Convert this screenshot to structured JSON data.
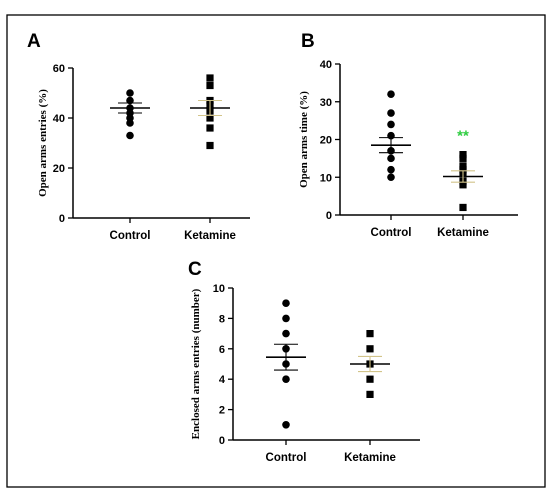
{
  "colors": {
    "frame": "#000000",
    "points": "#000000",
    "significance": "#2ecc40",
    "sem_alt": "#d2c48a"
  },
  "chart_data": [
    {
      "panel": "A",
      "type": "scatter",
      "ylabel": "Open arms entries (%)",
      "ylim": [
        0,
        60
      ],
      "yticks": [
        0,
        20,
        40,
        60
      ],
      "categories": [
        "Control",
        "Ketamine"
      ],
      "series": [
        {
          "category": "Control",
          "marker": "circle",
          "points": [
            50,
            47,
            44,
            42,
            40,
            38,
            33
          ],
          "mean": 44,
          "sem": 2
        },
        {
          "category": "Ketamine",
          "marker": "square",
          "points": [
            56,
            53,
            47,
            45,
            43,
            40,
            36,
            29
          ],
          "mean": 44,
          "sem": 3
        }
      ]
    },
    {
      "panel": "B",
      "type": "scatter",
      "ylabel": "Open arms time (%)",
      "ylim": [
        0,
        40
      ],
      "yticks": [
        0,
        10,
        20,
        30,
        40
      ],
      "categories": [
        "Control",
        "Ketamine"
      ],
      "series": [
        {
          "category": "Control",
          "marker": "circle",
          "points": [
            32,
            27,
            24,
            21,
            17,
            15,
            12,
            10
          ],
          "mean": 18.5,
          "sem": 2
        },
        {
          "category": "Ketamine",
          "marker": "square",
          "points": [
            16,
            15,
            13,
            12,
            11,
            9,
            8,
            2
          ],
          "mean": 10.2,
          "sem": 1.5,
          "significance": "**"
        }
      ]
    },
    {
      "panel": "C",
      "type": "scatter",
      "ylabel": "Enclosed arms entries (number)",
      "ylim": [
        0,
        10
      ],
      "yticks": [
        0,
        2,
        4,
        6,
        8,
        10
      ],
      "categories": [
        "Control",
        "Ketamine"
      ],
      "series": [
        {
          "category": "Control",
          "marker": "circle",
          "points": [
            9,
            8,
            7,
            6,
            5,
            4,
            1
          ],
          "mean": 5.45,
          "sem": 0.85
        },
        {
          "category": "Ketamine",
          "marker": "square",
          "points": [
            7,
            6,
            5,
            4,
            3
          ],
          "mean": 5,
          "sem": 0.5
        }
      ]
    }
  ]
}
